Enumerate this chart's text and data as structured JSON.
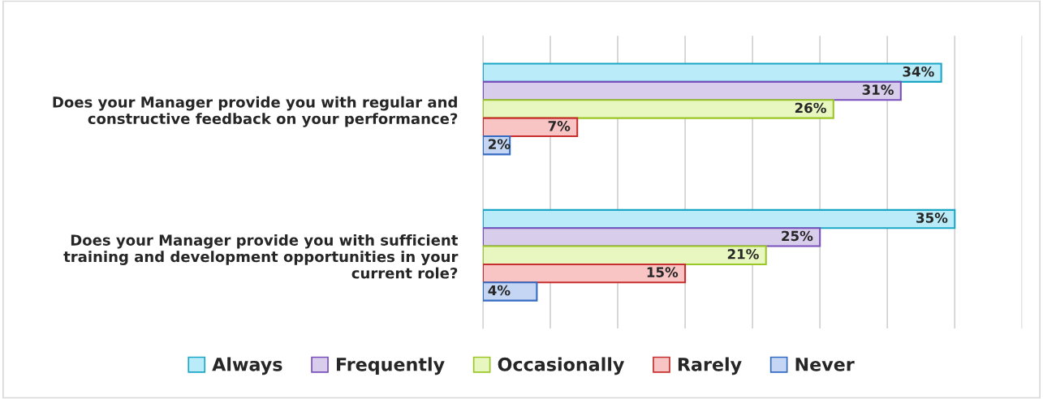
{
  "chart_data": {
    "type": "bar",
    "orientation": "horizontal",
    "categories": [
      "Does your Manager provide you with regular and\nconstructive feedback on your performance?",
      "Does your Manager provide you with sufficient\ntraining and development opportunities in your\ncurrent role?"
    ],
    "series": [
      {
        "name": "Always",
        "color": "#b9ecf8",
        "values": [
          34,
          35
        ],
        "value_labels": [
          "34%",
          "35%"
        ]
      },
      {
        "name": "Frequently",
        "color": "#d8cdea",
        "values": [
          31,
          25
        ],
        "value_labels": [
          "31%",
          "25%"
        ]
      },
      {
        "name": "Occasionally",
        "color": "#e8f7bf",
        "values": [
          26,
          21
        ],
        "value_labels": [
          "26%",
          "21%"
        ]
      },
      {
        "name": "Rarely",
        "color": "#f9c4c4",
        "values": [
          7,
          15
        ],
        "value_labels": [
          "7%",
          "15%"
        ]
      },
      {
        "name": "Never",
        "color": "#c4d6f3",
        "values": [
          2,
          4
        ],
        "value_labels": [
          "2%",
          "4%"
        ]
      }
    ],
    "xlim": [
      0,
      40
    ],
    "xticks": [
      {
        "value": 0,
        "label": null
      },
      {
        "value": 5,
        "label": null
      },
      {
        "value": 10,
        "label": null
      },
      {
        "value": 15,
        "label": null
      },
      {
        "value": 20,
        "label": null
      },
      {
        "value": 25,
        "label": null
      },
      {
        "value": 30,
        "label": null
      },
      {
        "value": 35,
        "label": null
      },
      {
        "value": 40,
        "label": null
      }
    ],
    "tick_labels": "y",
    "grid": "x",
    "legend": "bottom"
  }
}
